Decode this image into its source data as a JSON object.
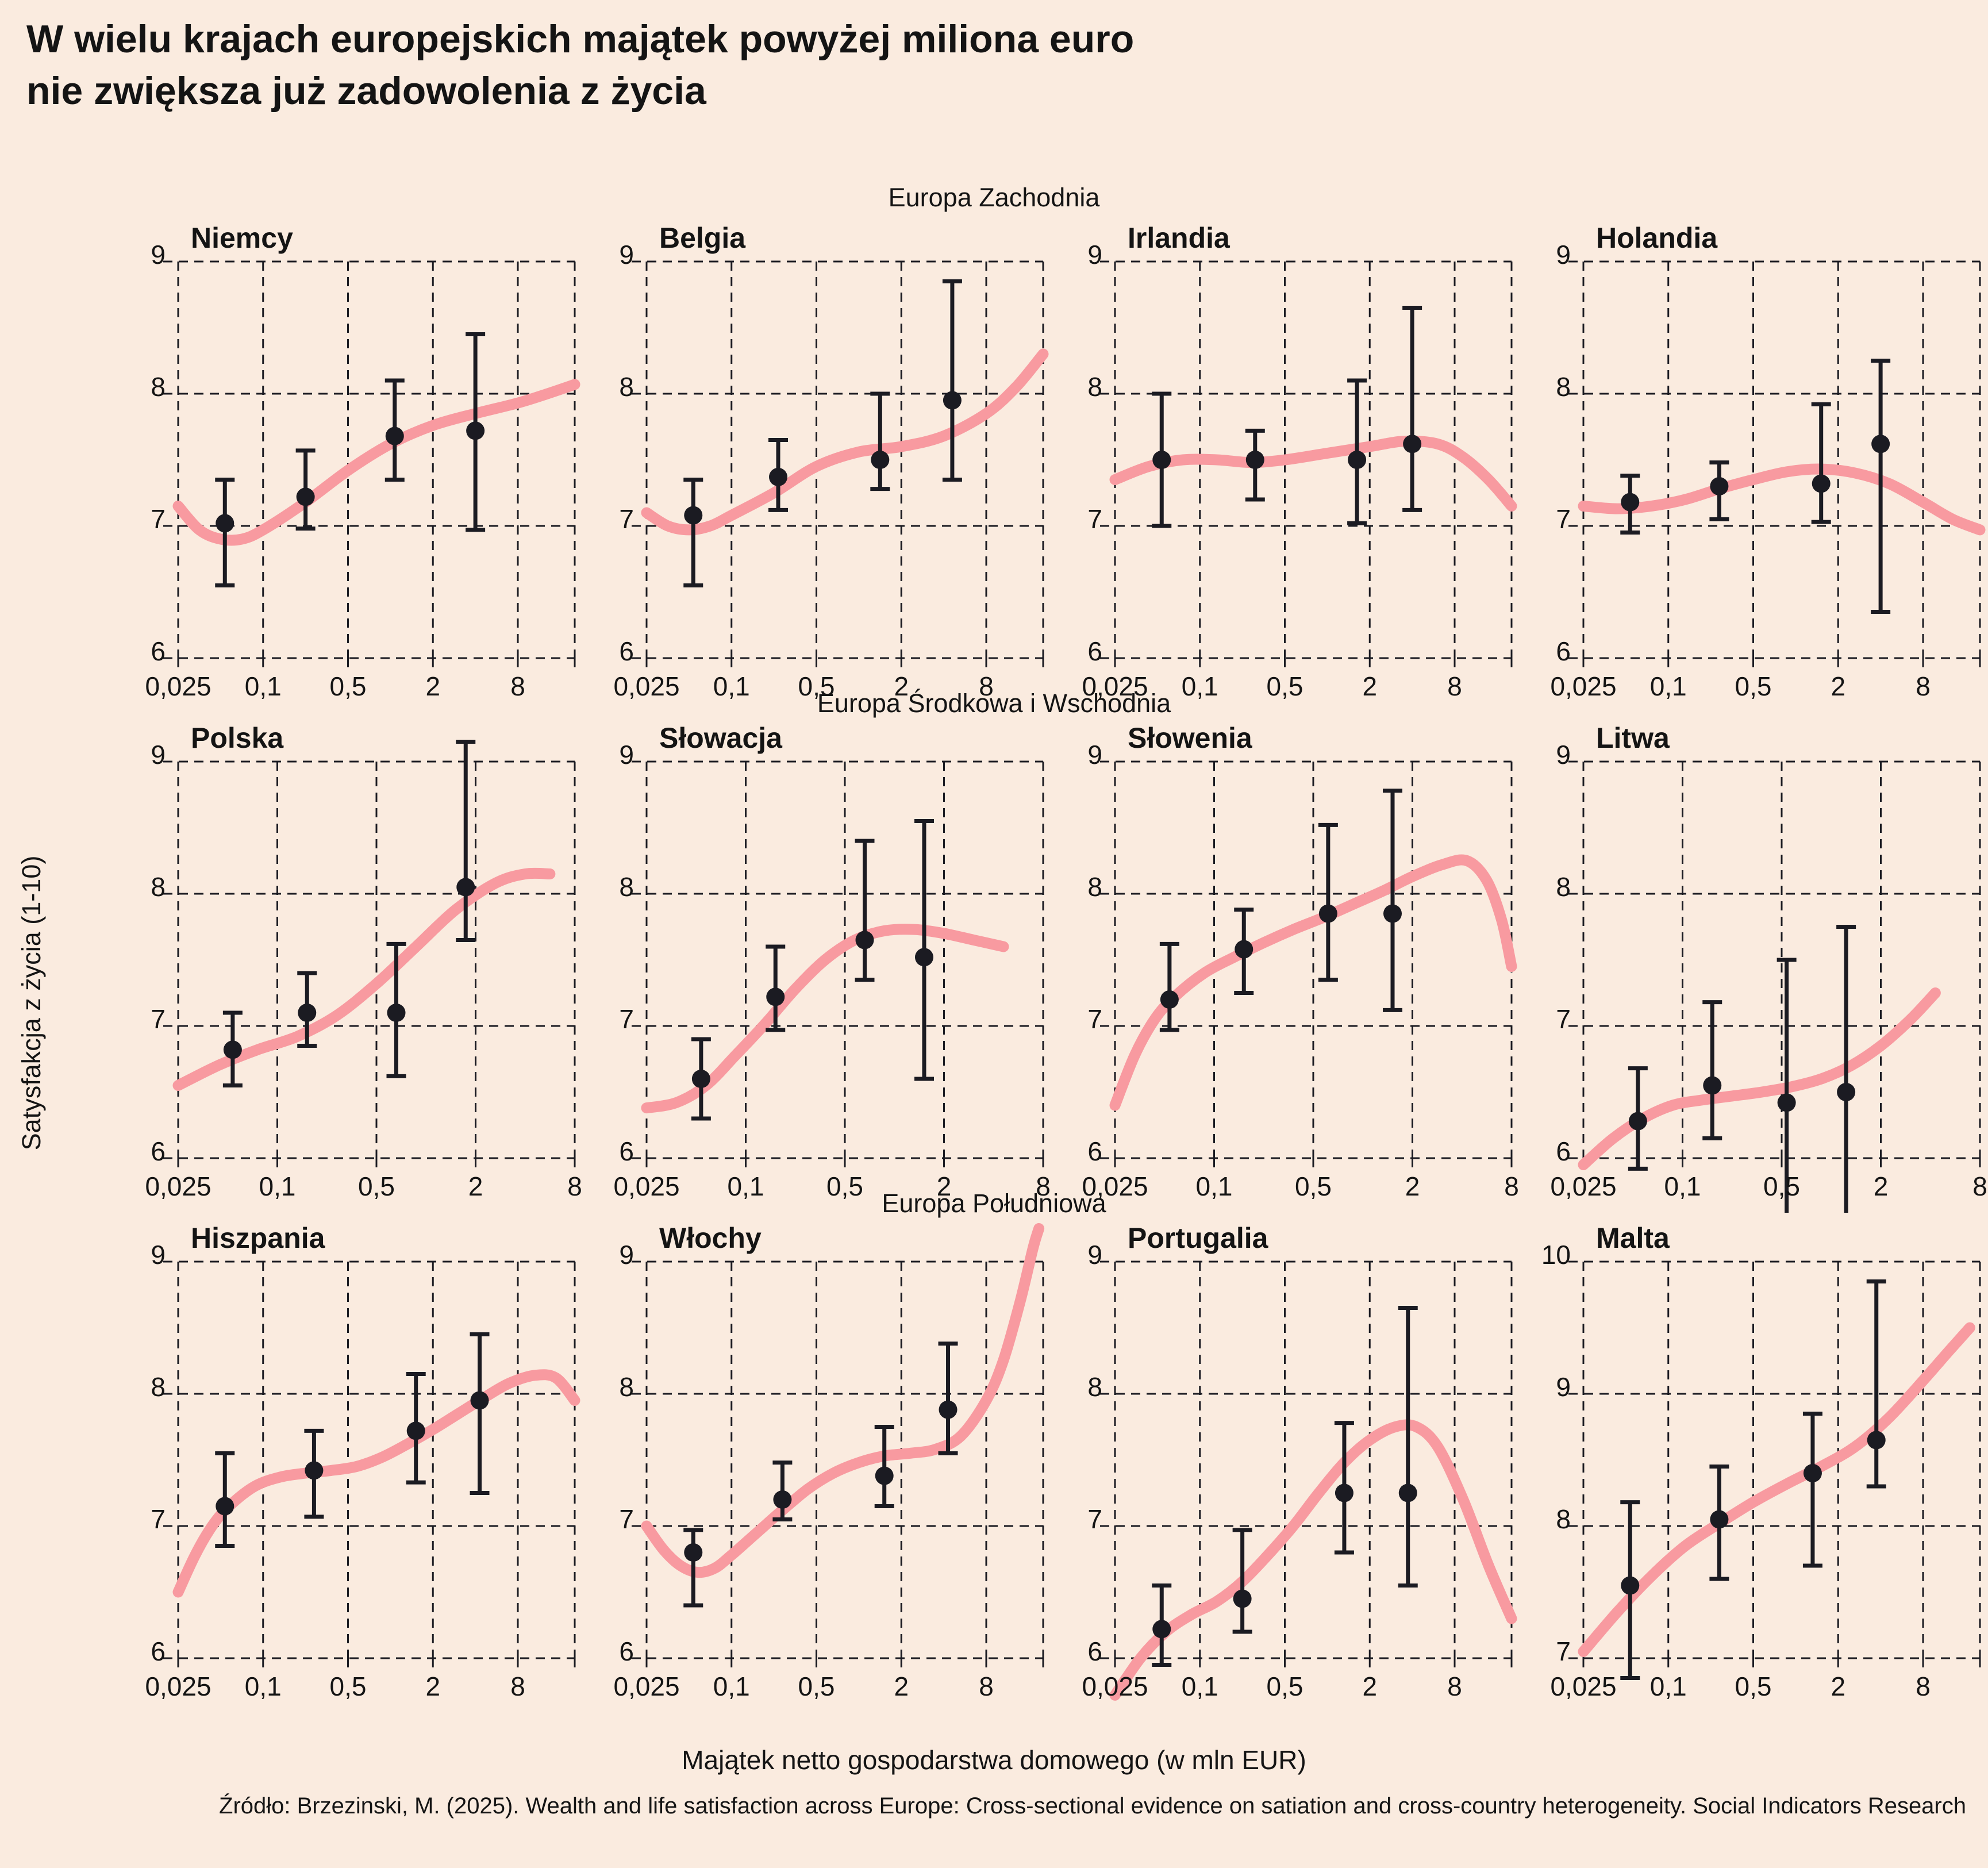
{
  "title": {
    "line1": "W wielu krajach europejskich majątek powyżej miliona euro",
    "line2": "nie zwiększa już zadowolenia z życia"
  },
  "sections": [
    {
      "label": "Europa Zachodnia"
    },
    {
      "label": "Europa Środkowa i Wschodnia"
    },
    {
      "label": "Europa Południowa"
    }
  ],
  "ylabel": "Satysfakcja z życia (1-10)",
  "xlabel": "Majątek netto gospodarstwa domowego (w mln EUR)",
  "source": "Źródło: Brzezinski, M. (2025). Wealth and life satisfaction across Europe: Cross-sectional evidence on satiation and cross-country heterogeneity. Social Indicators Research",
  "colors": {
    "background": "#faebdf",
    "curve": "#f89aa0",
    "point": "#1b1b22",
    "grid": "#1b1b22",
    "text": "#141414"
  },
  "axes": {
    "x_scale": "log",
    "x_tick_labels": [
      "0,025",
      "0,1",
      "0,5",
      "2",
      "8"
    ],
    "x_tick_values_mln_eur": [
      0.025,
      0.1,
      0.5,
      2,
      8
    ],
    "x_unit_note": "x_u grid units: 0=0.025, 1=0.1, 2=0.5, 3=2, 4=8 mln EUR"
  },
  "chart_data": [
    {
      "type": "line",
      "country": "Niemcy",
      "section": "Europa Zachodnia",
      "y_ticks": [
        9,
        8,
        7,
        6
      ],
      "xmax_u": 4.67,
      "points": [
        {
          "x_u": 0.55,
          "y": 7.02,
          "lo": 6.55,
          "hi": 7.35
        },
        {
          "x_u": 1.5,
          "y": 7.22,
          "lo": 6.98,
          "hi": 7.57
        },
        {
          "x_u": 2.55,
          "y": 7.68,
          "lo": 7.35,
          "hi": 8.1
        },
        {
          "x_u": 3.5,
          "y": 7.72,
          "lo": 6.97,
          "hi": 8.45
        }
      ],
      "curve": [
        [
          0,
          7.15
        ],
        [
          0.25,
          6.97
        ],
        [
          0.5,
          6.9
        ],
        [
          0.75,
          6.9
        ],
        [
          1.0,
          6.97
        ],
        [
          1.5,
          7.18
        ],
        [
          2.0,
          7.42
        ],
        [
          2.5,
          7.62
        ],
        [
          3.0,
          7.76
        ],
        [
          3.5,
          7.85
        ],
        [
          4.0,
          7.93
        ],
        [
          4.35,
          8.0
        ],
        [
          4.67,
          8.07
        ]
      ]
    },
    {
      "type": "line",
      "country": "Belgia",
      "section": "Europa Zachodnia",
      "y_ticks": [
        9,
        8,
        7,
        6
      ],
      "xmax_u": 4.67,
      "points": [
        {
          "x_u": 0.55,
          "y": 7.08,
          "lo": 6.55,
          "hi": 7.35
        },
        {
          "x_u": 1.55,
          "y": 7.37,
          "lo": 7.12,
          "hi": 7.65
        },
        {
          "x_u": 2.75,
          "y": 7.5,
          "lo": 7.28,
          "hi": 8.0
        },
        {
          "x_u": 3.6,
          "y": 7.95,
          "lo": 7.35,
          "hi": 8.85
        }
      ],
      "curve": [
        [
          0,
          7.1
        ],
        [
          0.25,
          7.0
        ],
        [
          0.5,
          6.97
        ],
        [
          0.75,
          7.0
        ],
        [
          1.0,
          7.08
        ],
        [
          1.5,
          7.25
        ],
        [
          2.0,
          7.45
        ],
        [
          2.5,
          7.56
        ],
        [
          3.0,
          7.6
        ],
        [
          3.5,
          7.68
        ],
        [
          4.0,
          7.85
        ],
        [
          4.35,
          8.05
        ],
        [
          4.67,
          8.3
        ]
      ]
    },
    {
      "type": "line",
      "country": "Irlandia",
      "section": "Europa Zachodnia",
      "y_ticks": [
        9,
        8,
        7,
        6
      ],
      "xmax_u": 4.67,
      "points": [
        {
          "x_u": 0.55,
          "y": 7.5,
          "lo": 7.0,
          "hi": 8.0
        },
        {
          "x_u": 1.65,
          "y": 7.5,
          "lo": 7.2,
          "hi": 7.72
        },
        {
          "x_u": 2.85,
          "y": 7.5,
          "lo": 7.02,
          "hi": 8.1
        },
        {
          "x_u": 3.5,
          "y": 7.62,
          "lo": 7.12,
          "hi": 8.65
        }
      ],
      "curve": [
        [
          0,
          7.35
        ],
        [
          0.4,
          7.45
        ],
        [
          0.8,
          7.5
        ],
        [
          1.2,
          7.5
        ],
        [
          1.6,
          7.48
        ],
        [
          2.0,
          7.5
        ],
        [
          2.5,
          7.55
        ],
        [
          3.0,
          7.6
        ],
        [
          3.4,
          7.64
        ],
        [
          3.8,
          7.62
        ],
        [
          4.1,
          7.52
        ],
        [
          4.4,
          7.35
        ],
        [
          4.67,
          7.15
        ]
      ]
    },
    {
      "type": "line",
      "country": "Holandia",
      "section": "Europa Zachodnia",
      "y_ticks": [
        9,
        8,
        7,
        6
      ],
      "xmax_u": 4.67,
      "points": [
        {
          "x_u": 0.55,
          "y": 7.18,
          "lo": 6.95,
          "hi": 7.38
        },
        {
          "x_u": 1.6,
          "y": 7.3,
          "lo": 7.05,
          "hi": 7.48
        },
        {
          "x_u": 2.8,
          "y": 7.32,
          "lo": 7.03,
          "hi": 7.92
        },
        {
          "x_u": 3.5,
          "y": 7.62,
          "lo": 6.35,
          "hi": 8.25
        }
      ],
      "curve": [
        [
          0,
          7.15
        ],
        [
          0.4,
          7.13
        ],
        [
          0.8,
          7.15
        ],
        [
          1.2,
          7.2
        ],
        [
          1.6,
          7.28
        ],
        [
          2.0,
          7.35
        ],
        [
          2.4,
          7.41
        ],
        [
          2.8,
          7.43
        ],
        [
          3.2,
          7.4
        ],
        [
          3.6,
          7.32
        ],
        [
          4.0,
          7.18
        ],
        [
          4.35,
          7.05
        ],
        [
          4.67,
          6.97
        ]
      ]
    },
    {
      "type": "line",
      "country": "Polska",
      "section": "Europa Środkowa i Wschodnia",
      "y_ticks": [
        9,
        8,
        7,
        6
      ],
      "xmax_u": 4.0,
      "points": [
        {
          "x_u": 0.55,
          "y": 6.82,
          "lo": 6.55,
          "hi": 7.1
        },
        {
          "x_u": 1.3,
          "y": 7.1,
          "lo": 6.85,
          "hi": 7.4
        },
        {
          "x_u": 2.2,
          "y": 7.1,
          "lo": 6.62,
          "hi": 7.62
        },
        {
          "x_u": 2.9,
          "y": 8.05,
          "lo": 7.65,
          "hi": 9.15
        }
      ],
      "curve": [
        [
          0,
          6.55
        ],
        [
          0.4,
          6.7
        ],
        [
          0.8,
          6.82
        ],
        [
          1.2,
          6.92
        ],
        [
          1.6,
          7.08
        ],
        [
          2.0,
          7.32
        ],
        [
          2.4,
          7.6
        ],
        [
          2.8,
          7.88
        ],
        [
          3.2,
          8.08
        ],
        [
          3.5,
          8.15
        ],
        [
          3.75,
          8.15
        ]
      ]
    },
    {
      "type": "line",
      "country": "Słowacja",
      "section": "Europa Środkowa i Wschodnia",
      "y_ticks": [
        9,
        8,
        7,
        6
      ],
      "xmax_u": 4.0,
      "points": [
        {
          "x_u": 0.55,
          "y": 6.6,
          "lo": 6.3,
          "hi": 6.9
        },
        {
          "x_u": 1.3,
          "y": 7.22,
          "lo": 6.97,
          "hi": 7.6
        },
        {
          "x_u": 2.2,
          "y": 7.65,
          "lo": 7.35,
          "hi": 8.4
        },
        {
          "x_u": 2.8,
          "y": 7.52,
          "lo": 6.6,
          "hi": 8.55
        }
      ],
      "curve": [
        [
          0,
          6.38
        ],
        [
          0.3,
          6.42
        ],
        [
          0.6,
          6.55
        ],
        [
          0.9,
          6.78
        ],
        [
          1.2,
          7.02
        ],
        [
          1.5,
          7.28
        ],
        [
          1.8,
          7.5
        ],
        [
          2.1,
          7.65
        ],
        [
          2.4,
          7.72
        ],
        [
          2.7,
          7.73
        ],
        [
          3.0,
          7.7
        ],
        [
          3.3,
          7.65
        ],
        [
          3.6,
          7.6
        ]
      ]
    },
    {
      "type": "line",
      "country": "Słowenia",
      "section": "Europa Środkowa i Wschodnia",
      "y_ticks": [
        9,
        8,
        7,
        6
      ],
      "xmax_u": 4.0,
      "points": [
        {
          "x_u": 0.55,
          "y": 7.2,
          "lo": 6.97,
          "hi": 7.62
        },
        {
          "x_u": 1.3,
          "y": 7.58,
          "lo": 7.25,
          "hi": 7.88
        },
        {
          "x_u": 2.15,
          "y": 7.85,
          "lo": 7.35,
          "hi": 8.52
        },
        {
          "x_u": 2.8,
          "y": 7.85,
          "lo": 7.12,
          "hi": 8.78
        }
      ],
      "curve": [
        [
          0,
          6.4
        ],
        [
          0.2,
          6.78
        ],
        [
          0.4,
          7.05
        ],
        [
          0.6,
          7.22
        ],
        [
          0.9,
          7.4
        ],
        [
          1.2,
          7.52
        ],
        [
          1.5,
          7.63
        ],
        [
          1.8,
          7.73
        ],
        [
          2.1,
          7.82
        ],
        [
          2.4,
          7.92
        ],
        [
          2.7,
          8.02
        ],
        [
          3.0,
          8.13
        ],
        [
          3.3,
          8.22
        ],
        [
          3.55,
          8.25
        ],
        [
          3.75,
          8.1
        ],
        [
          3.9,
          7.8
        ],
        [
          4.0,
          7.45
        ]
      ]
    },
    {
      "type": "line",
      "country": "Litwa",
      "section": "Europa Środkowa i Wschodnia",
      "y_ticks": [
        9,
        8,
        7,
        6
      ],
      "xmax_u": 4.0,
      "points": [
        {
          "x_u": 0.55,
          "y": 6.28,
          "lo": 5.92,
          "hi": 6.68
        },
        {
          "x_u": 1.3,
          "y": 6.55,
          "lo": 6.15,
          "hi": 7.18
        },
        {
          "x_u": 2.05,
          "y": 6.42,
          "lo": 5.45,
          "hi": 7.5
        },
        {
          "x_u": 2.65,
          "y": 6.5,
          "lo": 5.5,
          "hi": 7.75
        }
      ],
      "curve": [
        [
          0,
          5.95
        ],
        [
          0.3,
          6.15
        ],
        [
          0.6,
          6.3
        ],
        [
          0.9,
          6.4
        ],
        [
          1.2,
          6.44
        ],
        [
          1.5,
          6.47
        ],
        [
          1.8,
          6.5
        ],
        [
          2.1,
          6.54
        ],
        [
          2.4,
          6.6
        ],
        [
          2.7,
          6.7
        ],
        [
          3.0,
          6.85
        ],
        [
          3.3,
          7.05
        ],
        [
          3.55,
          7.25
        ]
      ]
    },
    {
      "type": "line",
      "country": "Hiszpania",
      "section": "Europa Południowa",
      "y_ticks": [
        9,
        8,
        7,
        6
      ],
      "xmax_u": 4.67,
      "points": [
        {
          "x_u": 0.55,
          "y": 7.15,
          "lo": 6.85,
          "hi": 7.55
        },
        {
          "x_u": 1.6,
          "y": 7.42,
          "lo": 7.07,
          "hi": 7.72
        },
        {
          "x_u": 2.8,
          "y": 7.72,
          "lo": 7.33,
          "hi": 8.15
        },
        {
          "x_u": 3.55,
          "y": 7.95,
          "lo": 7.25,
          "hi": 8.45
        }
      ],
      "curve": [
        [
          0,
          6.5
        ],
        [
          0.2,
          6.78
        ],
        [
          0.4,
          7.0
        ],
        [
          0.6,
          7.15
        ],
        [
          0.9,
          7.3
        ],
        [
          1.2,
          7.37
        ],
        [
          1.5,
          7.4
        ],
        [
          1.8,
          7.42
        ],
        [
          2.1,
          7.45
        ],
        [
          2.4,
          7.52
        ],
        [
          2.7,
          7.62
        ],
        [
          3.0,
          7.73
        ],
        [
          3.3,
          7.85
        ],
        [
          3.6,
          7.97
        ],
        [
          3.9,
          8.08
        ],
        [
          4.2,
          8.14
        ],
        [
          4.45,
          8.12
        ],
        [
          4.67,
          7.95
        ]
      ]
    },
    {
      "type": "line",
      "country": "Włochy",
      "section": "Europa Południowa",
      "y_ticks": [
        9,
        8,
        7,
        6
      ],
      "xmax_u": 4.67,
      "points": [
        {
          "x_u": 0.55,
          "y": 6.8,
          "lo": 6.4,
          "hi": 6.97
        },
        {
          "x_u": 1.6,
          "y": 7.2,
          "lo": 7.05,
          "hi": 7.48
        },
        {
          "x_u": 2.8,
          "y": 7.38,
          "lo": 7.15,
          "hi": 7.75
        },
        {
          "x_u": 3.55,
          "y": 7.88,
          "lo": 7.55,
          "hi": 8.38
        }
      ],
      "curve": [
        [
          0,
          7.0
        ],
        [
          0.2,
          6.82
        ],
        [
          0.4,
          6.7
        ],
        [
          0.6,
          6.65
        ],
        [
          0.8,
          6.68
        ],
        [
          1.0,
          6.78
        ],
        [
          1.3,
          6.95
        ],
        [
          1.6,
          7.12
        ],
        [
          1.9,
          7.28
        ],
        [
          2.2,
          7.4
        ],
        [
          2.5,
          7.48
        ],
        [
          2.8,
          7.53
        ],
        [
          3.1,
          7.55
        ],
        [
          3.4,
          7.58
        ],
        [
          3.7,
          7.68
        ],
        [
          4.0,
          7.95
        ],
        [
          4.2,
          8.25
        ],
        [
          4.4,
          8.7
        ],
        [
          4.55,
          9.1
        ],
        [
          4.62,
          9.25
        ]
      ]
    },
    {
      "type": "line",
      "country": "Portugalia",
      "section": "Europa Południowa",
      "y_ticks": [
        9,
        8,
        7,
        6
      ],
      "xmax_u": 4.67,
      "points": [
        {
          "x_u": 0.55,
          "y": 6.22,
          "lo": 5.95,
          "hi": 6.55
        },
        {
          "x_u": 1.5,
          "y": 6.45,
          "lo": 6.2,
          "hi": 6.97
        },
        {
          "x_u": 2.7,
          "y": 7.25,
          "lo": 6.8,
          "hi": 7.78
        },
        {
          "x_u": 3.45,
          "y": 7.25,
          "lo": 6.55,
          "hi": 8.65
        }
      ],
      "curve": [
        [
          0,
          5.72
        ],
        [
          0.3,
          6.0
        ],
        [
          0.6,
          6.2
        ],
        [
          0.9,
          6.33
        ],
        [
          1.2,
          6.43
        ],
        [
          1.5,
          6.58
        ],
        [
          1.8,
          6.78
        ],
        [
          2.1,
          7.0
        ],
        [
          2.4,
          7.25
        ],
        [
          2.7,
          7.48
        ],
        [
          3.0,
          7.65
        ],
        [
          3.3,
          7.75
        ],
        [
          3.55,
          7.75
        ],
        [
          3.8,
          7.6
        ],
        [
          4.1,
          7.2
        ],
        [
          4.4,
          6.7
        ],
        [
          4.67,
          6.3
        ]
      ]
    },
    {
      "type": "line",
      "country": "Malta",
      "section": "Europa Południowa",
      "y_ticks": [
        10,
        9,
        8,
        7
      ],
      "xmax_u": 4.67,
      "points": [
        {
          "x_u": 0.55,
          "y": 7.55,
          "lo": 6.85,
          "hi": 8.18
        },
        {
          "x_u": 1.6,
          "y": 8.05,
          "lo": 7.6,
          "hi": 8.45
        },
        {
          "x_u": 2.7,
          "y": 8.4,
          "lo": 7.7,
          "hi": 8.85
        },
        {
          "x_u": 3.45,
          "y": 8.65,
          "lo": 8.3,
          "hi": 9.85
        }
      ],
      "curve": [
        [
          0,
          7.05
        ],
        [
          0.4,
          7.35
        ],
        [
          0.8,
          7.62
        ],
        [
          1.2,
          7.85
        ],
        [
          1.6,
          8.02
        ],
        [
          2.0,
          8.18
        ],
        [
          2.4,
          8.32
        ],
        [
          2.8,
          8.45
        ],
        [
          3.2,
          8.6
        ],
        [
          3.6,
          8.82
        ],
        [
          4.0,
          9.1
        ],
        [
          4.3,
          9.32
        ],
        [
          4.55,
          9.5
        ]
      ]
    }
  ]
}
